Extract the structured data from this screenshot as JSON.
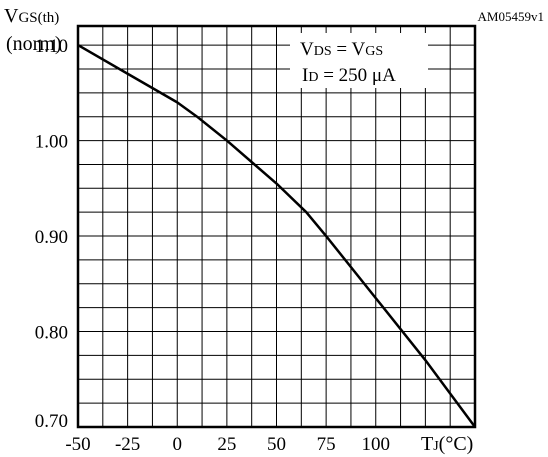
{
  "figure_id": "AM05459v1",
  "chart_data": {
    "type": "line",
    "y_title": "VGS(th)",
    "y_title_main": "V",
    "y_title_sub": "GS(th)",
    "y_unit": "(norm)",
    "x_title_main": "T",
    "x_title_sub": "J",
    "x_title_unit": "(°C)",
    "x_ticks": [
      "-50",
      "-25",
      "0",
      "25",
      "50",
      "75",
      "100"
    ],
    "x_tick_values": [
      -50,
      -25,
      0,
      25,
      50,
      75,
      100
    ],
    "y_ticks": [
      "0.70",
      "0.80",
      "0.90",
      "1.00",
      "1.10"
    ],
    "y_tick_values": [
      0.7,
      0.8,
      0.9,
      1.0,
      1.1
    ],
    "xlim": [
      -50,
      150
    ],
    "ylim": [
      0.7,
      1.12
    ],
    "grid": true,
    "annotations": [
      {
        "main": "V",
        "sub": "DS",
        "eq": " = ",
        "main2": "V",
        "sub2": "GS"
      },
      {
        "main": "I",
        "sub": "D",
        "eq": " = 250 μA"
      }
    ],
    "series": [
      {
        "x": [
          -50,
          -25,
          0,
          10,
          25,
          50,
          65,
          75,
          100,
          125,
          150
        ],
        "values": [
          1.1,
          1.07,
          1.04,
          1.025,
          1.0,
          0.955,
          0.925,
          0.9,
          0.835,
          0.77,
          0.7
        ]
      }
    ]
  }
}
